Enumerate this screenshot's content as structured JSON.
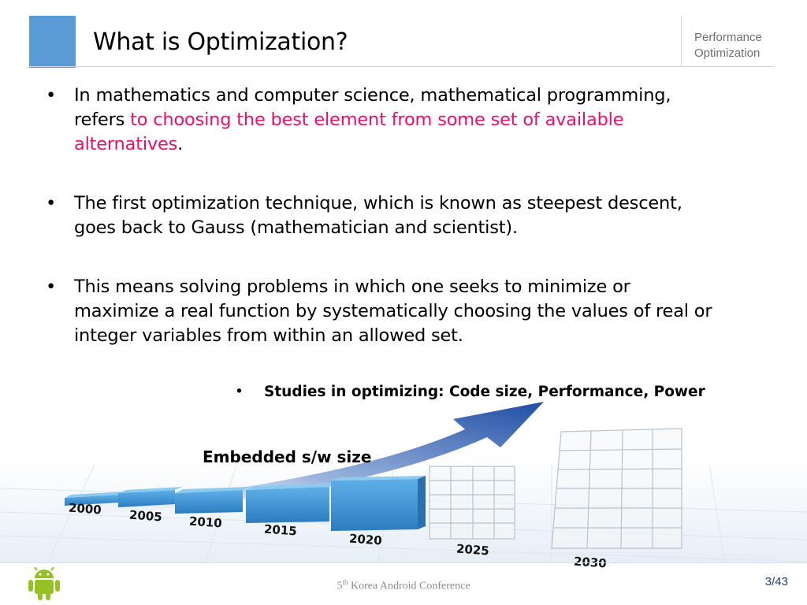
{
  "header": {
    "title": "What is Optimization?",
    "section_label": "Performance Optimization"
  },
  "bullets": [
    {
      "text": "In mathematics and computer science, mathematical programming, refers ",
      "highlight": "to choosing the best element from some set of available alternatives",
      "suffix": "."
    },
    {
      "text": "The first optimization technique, which is known as steepest descent, goes back to Gauss (mathematician and scientist).",
      "highlight": "",
      "suffix": ""
    },
    {
      "text": "This means solving problems in which one seeks to minimize or maximize a real function by systematically choosing the values of real or integer variables from within an allowed set.",
      "highlight": "",
      "suffix": ""
    }
  ],
  "bullet_marker": "•",
  "sub_bullet": "Studies in optimizing: Code size, Performance, Power",
  "illustration": {
    "label": "Embedded s/w size",
    "years": [
      "2000",
      "2005",
      "2010",
      "2015",
      "2020",
      "2025",
      "2030"
    ]
  },
  "footer": {
    "conference_prefix": "5",
    "conference_sup": "th",
    "conference_suffix": " Korea Android Conference",
    "page": "3/43"
  },
  "colors": {
    "accent": "#5b9bd5",
    "highlight": "#e8106a",
    "bar_blue": "#3d8fd0",
    "arrow": "#1f4ea3"
  }
}
